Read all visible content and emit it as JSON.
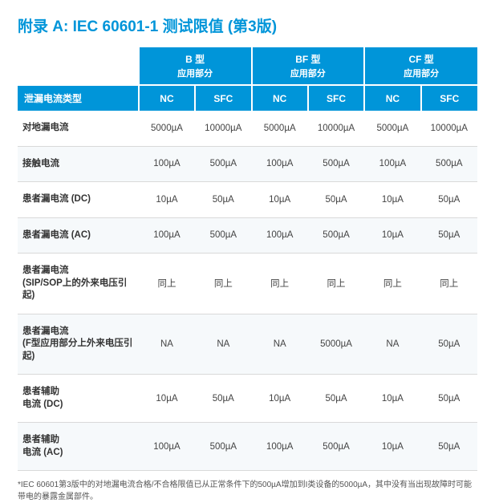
{
  "title": "附录 A: IEC 60601-1 测试限值 (第3版)",
  "group_headers": [
    {
      "l1": "B 型",
      "l2": "应用部分"
    },
    {
      "l1": "BF 型",
      "l2": "应用部分"
    },
    {
      "l1": "CF 型",
      "l2": "应用部分"
    }
  ],
  "row_header_label": "泄漏电流类型",
  "sub_headers": [
    "NC",
    "SFC",
    "NC",
    "SFC",
    "NC",
    "SFC"
  ],
  "rows": [
    {
      "label": "对地漏电流",
      "cells": [
        "5000µA",
        "10000µA",
        "5000µA",
        "10000µA",
        "5000µA",
        "10000µA"
      ]
    },
    {
      "label": "接触电流",
      "cells": [
        "100µA",
        "500µA",
        "100µA",
        "500µA",
        "100µA",
        "500µA"
      ]
    },
    {
      "label": "患者漏电流 (DC)",
      "cells": [
        "10µA",
        "50µA",
        "10µA",
        "50µA",
        "10µA",
        "50µA"
      ]
    },
    {
      "label": "患者漏电流 (AC)",
      "cells": [
        "100µA",
        "500µA",
        "100µA",
        "500µA",
        "10µA",
        "50µA"
      ]
    },
    {
      "label": "患者漏电流\n(SIP/SOP上的外来电压引起)",
      "cells": [
        "同上",
        "同上",
        "同上",
        "同上",
        "同上",
        "同上"
      ]
    },
    {
      "label": "患者漏电流\n(F型应用部分上外来电压引起)",
      "cells": [
        "NA",
        "NA",
        "NA",
        "5000µA",
        "NA",
        "50µA"
      ]
    },
    {
      "label": "患者辅助\n电流 (DC)",
      "cells": [
        "10µA",
        "50µA",
        "10µA",
        "50µA",
        "10µA",
        "50µA"
      ]
    },
    {
      "label": "患者辅助\n电流 (AC)",
      "cells": [
        "100µA",
        "500µA",
        "100µA",
        "500µA",
        "10µA",
        "50µA"
      ]
    }
  ],
  "footnote": "*IEC 60601第3版中的对地漏电流合格/不合格限值已从正常条件下的500µA增加到I类设备的5000µA，其中没有当出现故障时可能带电的暴露金属部件。"
}
